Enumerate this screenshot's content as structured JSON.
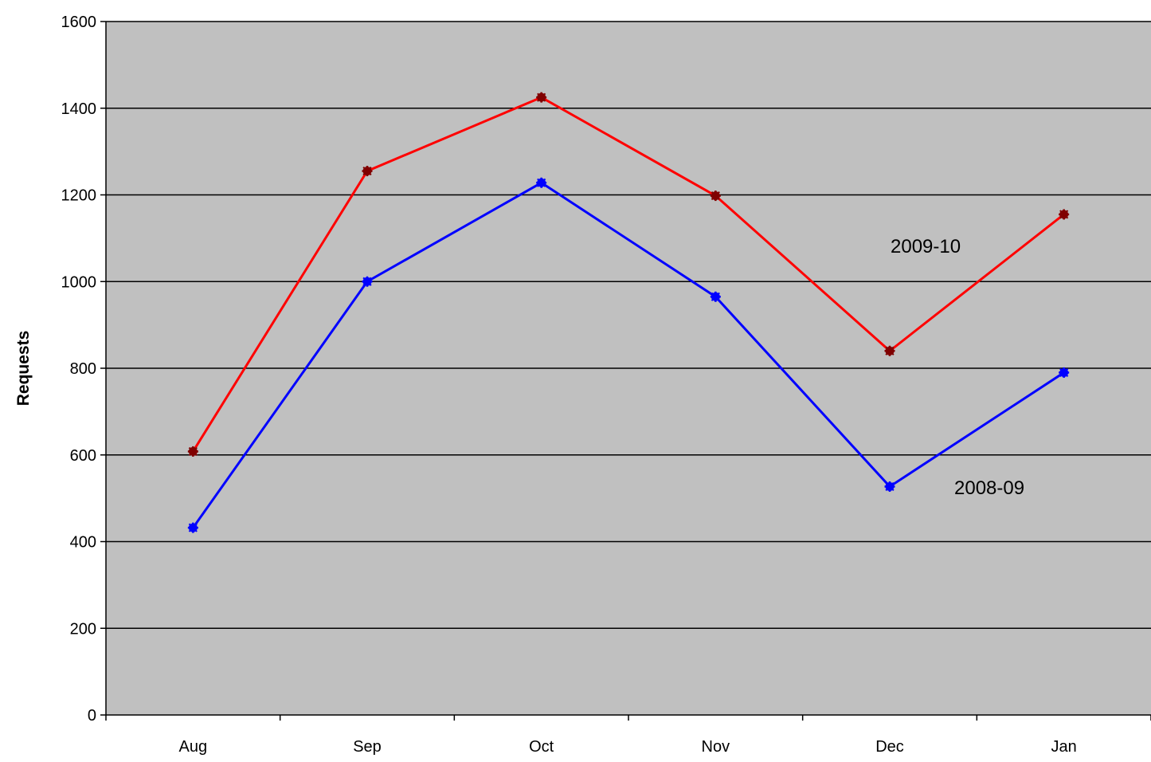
{
  "chart_data": {
    "type": "line",
    "title": "",
    "xlabel": "",
    "ylabel": "Requests",
    "categories": [
      "Aug",
      "Sep",
      "Oct",
      "Nov",
      "Dec",
      "Jan"
    ],
    "ylim": [
      0,
      1600
    ],
    "yticks": [
      0,
      200,
      400,
      600,
      800,
      1000,
      1200,
      1400,
      1600
    ],
    "grid": true,
    "legend": "none",
    "plot_background": "#C0C0C0",
    "series": [
      {
        "name": "2009-10",
        "values": [
          608,
          1255,
          1425,
          1198,
          840,
          1155
        ],
        "line_color": "#FF0000",
        "marker_color": "#800000",
        "annotation": "2009-10"
      },
      {
        "name": "2008-09",
        "values": [
          432,
          1000,
          1228,
          965,
          527,
          790
        ],
        "line_color": "#0000FF",
        "marker_color": "#0000FF",
        "annotation": "2008-09"
      }
    ]
  }
}
